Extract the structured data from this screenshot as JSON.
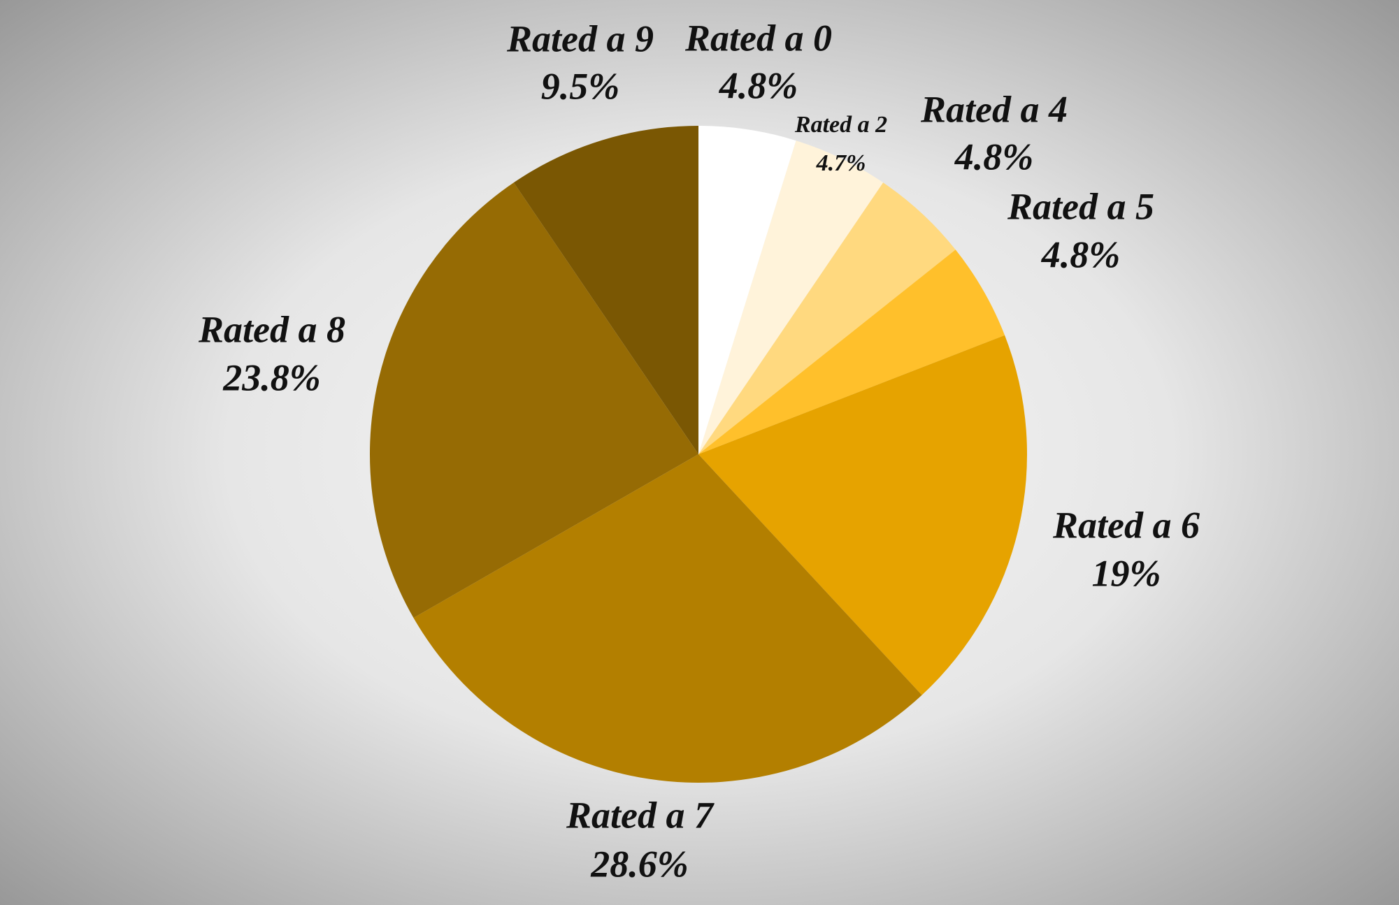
{
  "chart_data": {
    "type": "pie",
    "categories": [
      "Rated a 0",
      "Rated a 2",
      "Rated a 4",
      "Rated a 5",
      "Rated a 6",
      "Rated a 7",
      "Rated a 8",
      "Rated a 9"
    ],
    "values": [
      4.8,
      4.7,
      4.8,
      4.8,
      19,
      28.6,
      23.8,
      9.5
    ],
    "value_labels": [
      "4.8%",
      "4.7%",
      "4.8%",
      "4.8%",
      "19%",
      "28.6%",
      "23.8%",
      "9.5%"
    ],
    "colors": [
      "#ffffff",
      "#fff3da",
      "#ffd97f",
      "#ffc02b",
      "#e6a300",
      "#b37f00",
      "#966b04",
      "#7a5703"
    ]
  }
}
